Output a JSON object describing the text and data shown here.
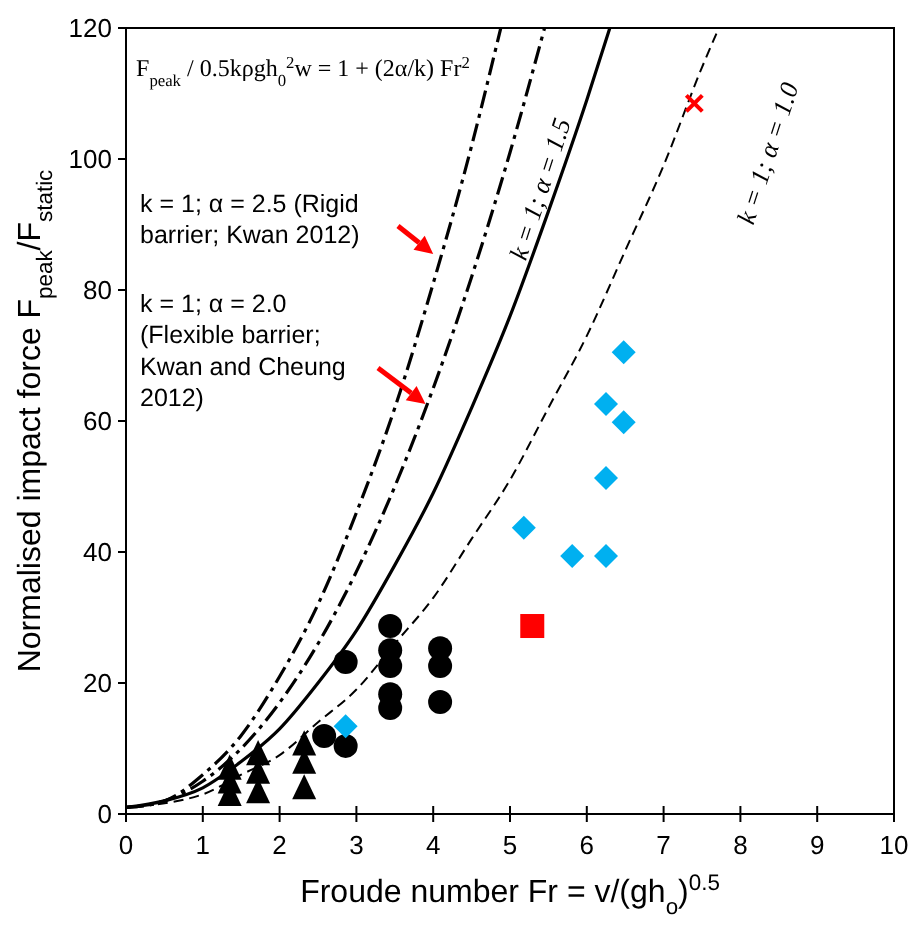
{
  "chart_data": {
    "type": "scatter",
    "xlabel": "Froude number Fr = v/(gh$_{o}$)$^{0.5}$",
    "ylabel": "Normalised impact force F$_{peak}$/F$_{static}$",
    "xlim": [
      0,
      10
    ],
    "ylim": [
      0,
      120
    ],
    "xticks": [
      0,
      1,
      2,
      3,
      4,
      5,
      6,
      7,
      8,
      9,
      10
    ],
    "yticks": [
      0,
      20,
      40,
      60,
      80,
      100,
      120
    ],
    "grid": false,
    "annotations": [
      "F$_{peak}$ / 0.5kρgh$_{0}$$^{2}$w = 1 + (2α/k) Fr$^{2}$",
      {
        "text": "k = 1;  α = 2.5 (Rigid\nbarrier; Kwan 2012)",
        "x": 4.0,
        "y": 85.5
      },
      {
        "text": "k = 1;  α = 2.0\n(Flexible barrier;\nKwan and Cheung\n2012)",
        "x": 3.9,
        "y": 62.6
      },
      {
        "text": "k = 1;  α = 1.5",
        "x": 5.5,
        "y": 95
      },
      "k = 1;  α = 1.0"
    ],
    "series": [
      {
        "type": "line",
        "color": "#000000",
        "line_style": "dashed",
        "marker": "none",
        "x": [
          0,
          0.5,
          1,
          1.5,
          2,
          2.5,
          3,
          3.5,
          4,
          4.5,
          4.88
        ],
        "values": [
          1,
          2,
          6,
          12,
          21,
          32,
          46,
          62,
          81,
          102,
          120
        ]
      },
      {
        "type": "line",
        "color": "#000000",
        "line_style": "dashed",
        "marker": "none",
        "x": [
          0,
          0.5,
          1,
          1.5,
          2,
          2.5,
          3,
          3.5,
          4,
          4.5,
          5,
          5.45
        ],
        "values": [
          1,
          2,
          5,
          10,
          17,
          26,
          37,
          50,
          65,
          82,
          101,
          120
        ]
      },
      {
        "type": "line",
        "color": "#000000",
        "line_style": "solid",
        "marker": "none",
        "x": [
          0,
          0.5,
          1,
          1.5,
          2,
          2.5,
          3,
          3.5,
          4,
          4.5,
          5,
          5.5,
          6,
          6.3
        ],
        "values": [
          1,
          2,
          4,
          8,
          13,
          20,
          28,
          38,
          49,
          62,
          76,
          92,
          109,
          120
        ]
      },
      {
        "type": "line",
        "color": "#000000",
        "line_style": "dotted",
        "marker": "none",
        "x": [
          0,
          1,
          1.5,
          2,
          2.5,
          3,
          3.5,
          4,
          4.5,
          5,
          5.5,
          6,
          6.5,
          7,
          7.5,
          7.72
        ],
        "values": [
          1,
          3,
          6,
          9,
          14,
          19,
          26,
          33,
          42,
          51,
          62,
          73,
          86,
          99,
          114,
          120
        ]
      },
      {
        "type": "scatter",
        "color": "#000000",
        "marker": "triangle",
        "x": [
          1.35,
          1.35,
          1.35,
          1.72,
          1.72,
          1.72,
          2.32,
          2.32,
          2.32
        ],
        "values": [
          6.7,
          4.6,
          2.7,
          8.9,
          6.1,
          3.1,
          10.4,
          7.6,
          3.7
        ]
      },
      {
        "type": "scatter",
        "color": "#000000",
        "marker": "circle",
        "x": [
          3.44,
          3.44,
          3.44,
          3.44,
          3.44,
          2.86,
          2.58,
          2.86,
          4.09,
          4.09,
          4.09
        ],
        "values": [
          28.7,
          25,
          22.6,
          18.3,
          16.2,
          23.2,
          11.9,
          10.4,
          25.3,
          22.6,
          17.1
        ]
      },
      {
        "type": "scatter",
        "color": "#00b0f0",
        "marker": "diamond",
        "x": [
          6.48,
          6.25,
          6.48,
          6.25,
          5.18,
          5.81,
          6.25,
          2.86
        ],
        "values": [
          70.5,
          62.6,
          59.8,
          51.3,
          43.7,
          39.4,
          39.4,
          13.4
        ]
      },
      {
        "type": "scatter",
        "color": "#ff0000",
        "marker": "square",
        "x": [
          5.29
        ],
        "values": [
          28.7
        ]
      },
      {
        "type": "scatter",
        "color": "#ff0000",
        "marker": "cross",
        "x": [
          7.4
        ],
        "values": [
          108.5
        ]
      }
    ]
  }
}
